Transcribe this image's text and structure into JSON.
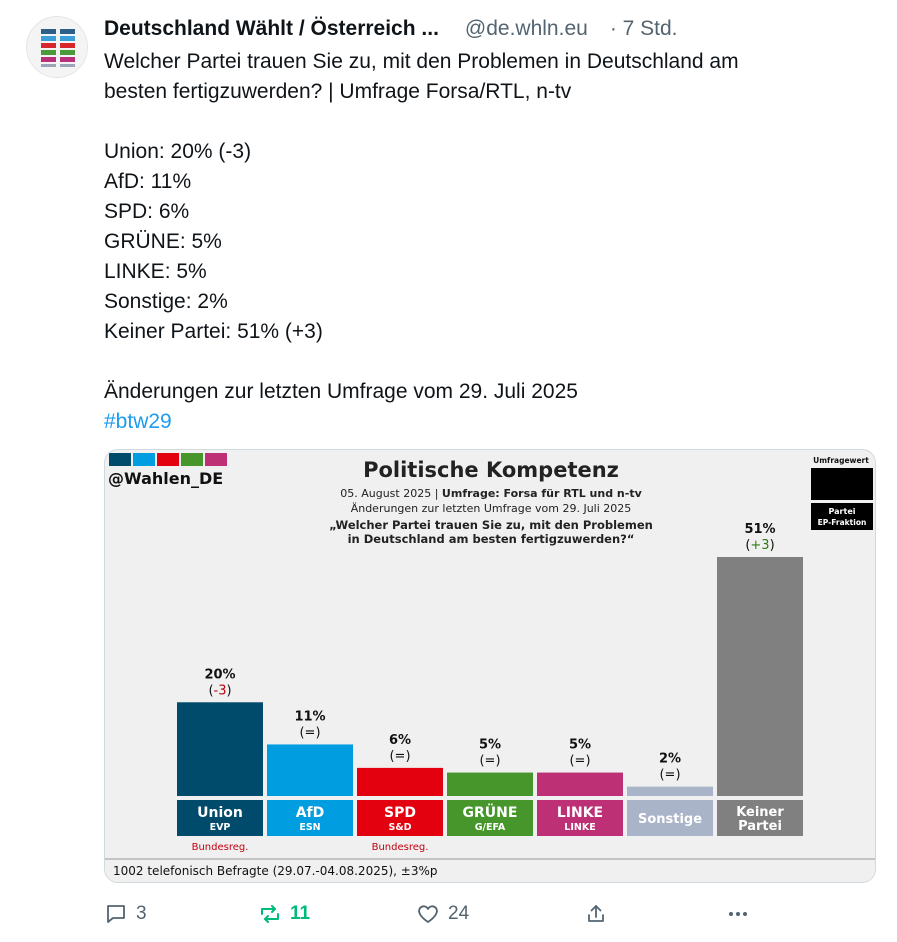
{
  "post": {
    "author_name": "Deutschland Wählt / Österreich ...",
    "handle": "@de.whln.eu",
    "time": "· 7 Std.",
    "text_lines": [
      "Welcher Partei trauen Sie zu, mit den Problemen in Deutschland am",
      "besten fertigzuwerden? | Umfrage Forsa/RTL, n-tv",
      "",
      "Union: 20% (-3)",
      "AfD: 11%",
      "SPD: 6%",
      "GRÜNE: 5%",
      "LINKE: 5%",
      "Sonstige: 2%",
      "Keiner Partei: 51% (+3)",
      "",
      "Änderungen zur letzten Umfrage vom 29. Juli 2025"
    ],
    "hashtag": "#btw29"
  },
  "actions": {
    "replies": "3",
    "reposts": "11",
    "likes": "24"
  },
  "chart_data": {
    "type": "bar",
    "watermark": "@Wahlen_DE",
    "title": "Politische Kompetenz",
    "subtitle_date": "05. August 2025 | ",
    "subtitle_survey": "Umfrage: Forsa für RTL und n-tv",
    "subtitle_change": "Änderungen zur letzten Umfrage vom 29. Juli 2025",
    "question_line1": "„Welcher Partei trauen Sie zu, mit den Problemen",
    "question_line2": "in Deutschland am besten fertigzuwerden?“",
    "legend_top": "Umfragewert",
    "legend_bottom_1": "Partei",
    "legend_bottom_2": "EP-Fraktion",
    "footer": "1002 telefonisch Befragte (29.07.-04.08.2025), ±3%p",
    "ylim": [
      0,
      51
    ],
    "bars": [
      {
        "party": "Union",
        "group": "EVP",
        "value": 20,
        "label": "20%",
        "change": "-3",
        "color": "#004b6b",
        "note": "Bundesreg."
      },
      {
        "party": "AfD",
        "group": "ESN",
        "value": 11,
        "label": "11%",
        "change": "=",
        "color": "#009ee0",
        "note": ""
      },
      {
        "party": "SPD",
        "group": "S&D",
        "value": 6,
        "label": "6%",
        "change": "=",
        "color": "#e3000f",
        "note": "Bundesreg."
      },
      {
        "party": "GRÜNE",
        "group": "G/EFA",
        "value": 5,
        "label": "5%",
        "change": "=",
        "color": "#46962b",
        "note": ""
      },
      {
        "party": "LINKE",
        "group": "LINKE",
        "value": 5,
        "label": "5%",
        "change": "=",
        "color": "#be3075",
        "note": ""
      },
      {
        "party": "Sonstige",
        "group": "",
        "value": 2,
        "label": "2%",
        "change": "=",
        "color": "#aab4c8",
        "note": ""
      },
      {
        "party": "Keiner",
        "party_line2": "Partei",
        "group": "",
        "value": 51,
        "label": "51%",
        "change": "+3",
        "color": "#808080",
        "note": ""
      }
    ]
  }
}
